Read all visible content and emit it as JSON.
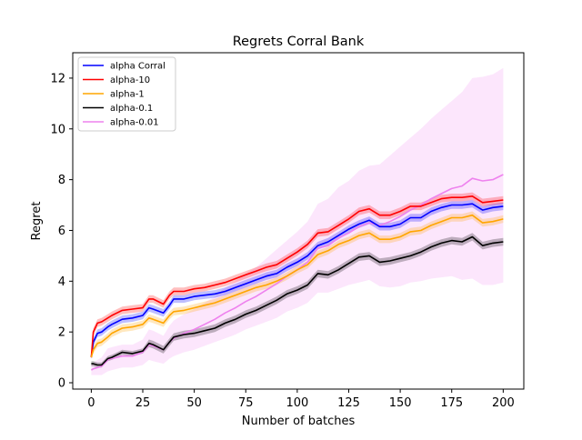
{
  "chart_data": {
    "type": "line",
    "title": "Regrets Corral Bank",
    "xlabel": "Number of batches",
    "ylabel": "Regret",
    "xlim": [
      -9,
      210
    ],
    "ylim": [
      -0.25,
      13
    ],
    "xticks": [
      0,
      25,
      50,
      75,
      100,
      125,
      150,
      175,
      200
    ],
    "yticks": [
      0,
      2,
      4,
      6,
      8,
      10,
      12
    ],
    "grid": false,
    "legend_position": "top-left",
    "series": [
      {
        "name": "alpha Corral",
        "color": "#0000ff",
        "x": [
          0,
          1,
          3,
          5,
          8,
          10,
          15,
          20,
          25,
          28,
          30,
          35,
          38,
          40,
          45,
          50,
          55,
          60,
          65,
          70,
          75,
          80,
          85,
          90,
          95,
          100,
          105,
          110,
          115,
          120,
          125,
          130,
          135,
          140,
          145,
          150,
          155,
          160,
          165,
          170,
          175,
          180,
          185,
          190,
          195,
          200
        ],
        "y": [
          1.0,
          1.6,
          1.95,
          2.0,
          2.2,
          2.3,
          2.5,
          2.55,
          2.65,
          2.95,
          2.9,
          2.75,
          3.05,
          3.3,
          3.3,
          3.4,
          3.45,
          3.5,
          3.6,
          3.75,
          3.9,
          4.05,
          4.2,
          4.3,
          4.55,
          4.75,
          5.0,
          5.4,
          5.55,
          5.8,
          6.05,
          6.25,
          6.4,
          6.15,
          6.15,
          6.25,
          6.5,
          6.5,
          6.75,
          6.9,
          7.0,
          7.0,
          7.05,
          6.8,
          6.9,
          6.95
        ],
        "lower": [
          0.95,
          1.45,
          1.8,
          1.85,
          2.05,
          2.15,
          2.35,
          2.4,
          2.5,
          2.8,
          2.75,
          2.6,
          2.9,
          3.15,
          3.15,
          3.25,
          3.3,
          3.35,
          3.45,
          3.6,
          3.75,
          3.9,
          4.05,
          4.15,
          4.4,
          4.6,
          4.85,
          5.25,
          5.4,
          5.65,
          5.9,
          6.1,
          6.25,
          6.0,
          6.0,
          6.1,
          6.35,
          6.35,
          6.6,
          6.75,
          6.85,
          6.85,
          6.9,
          6.65,
          6.75,
          6.8
        ],
        "upper": [
          1.05,
          1.75,
          2.1,
          2.15,
          2.35,
          2.45,
          2.65,
          2.7,
          2.8,
          3.1,
          3.05,
          2.9,
          3.2,
          3.45,
          3.45,
          3.55,
          3.6,
          3.65,
          3.75,
          3.9,
          4.05,
          4.2,
          4.35,
          4.45,
          4.7,
          4.9,
          5.15,
          5.55,
          5.7,
          5.95,
          6.2,
          6.4,
          6.55,
          6.3,
          6.3,
          6.4,
          6.65,
          6.65,
          6.9,
          7.05,
          7.15,
          7.15,
          7.2,
          6.95,
          7.05,
          7.1
        ]
      },
      {
        "name": "alpha-10",
        "color": "#ff0000",
        "x": [
          0,
          1,
          3,
          5,
          8,
          10,
          15,
          20,
          25,
          28,
          30,
          35,
          38,
          40,
          45,
          50,
          55,
          60,
          65,
          70,
          75,
          80,
          85,
          90,
          95,
          100,
          105,
          110,
          115,
          120,
          125,
          130,
          135,
          140,
          145,
          150,
          155,
          160,
          165,
          170,
          175,
          180,
          185,
          190,
          195,
          200
        ],
        "y": [
          1.0,
          2.0,
          2.35,
          2.4,
          2.55,
          2.65,
          2.85,
          2.9,
          2.95,
          3.3,
          3.3,
          3.1,
          3.45,
          3.6,
          3.6,
          3.7,
          3.75,
          3.85,
          3.95,
          4.1,
          4.25,
          4.4,
          4.55,
          4.65,
          4.9,
          5.15,
          5.45,
          5.9,
          5.95,
          6.2,
          6.45,
          6.75,
          6.85,
          6.6,
          6.6,
          6.75,
          6.95,
          6.95,
          7.1,
          7.25,
          7.3,
          7.3,
          7.35,
          7.1,
          7.15,
          7.2
        ],
        "lower": [
          0.95,
          1.85,
          2.2,
          2.25,
          2.4,
          2.5,
          2.7,
          2.75,
          2.8,
          3.15,
          3.15,
          2.95,
          3.3,
          3.45,
          3.45,
          3.55,
          3.6,
          3.7,
          3.8,
          3.95,
          4.1,
          4.25,
          4.4,
          4.5,
          4.75,
          5.0,
          5.3,
          5.75,
          5.8,
          6.05,
          6.3,
          6.6,
          6.7,
          6.45,
          6.45,
          6.6,
          6.8,
          6.8,
          6.95,
          7.1,
          7.15,
          7.15,
          7.2,
          6.95,
          7.0,
          7.05
        ],
        "upper": [
          1.05,
          2.15,
          2.5,
          2.55,
          2.7,
          2.8,
          3.0,
          3.05,
          3.1,
          3.45,
          3.45,
          3.25,
          3.6,
          3.75,
          3.75,
          3.85,
          3.9,
          4.0,
          4.1,
          4.25,
          4.4,
          4.55,
          4.7,
          4.8,
          5.05,
          5.3,
          5.6,
          6.05,
          6.1,
          6.35,
          6.6,
          6.9,
          7.0,
          6.75,
          6.75,
          6.9,
          7.1,
          7.1,
          7.25,
          7.4,
          7.45,
          7.45,
          7.5,
          7.25,
          7.3,
          7.35
        ]
      },
      {
        "name": "alpha-1",
        "color": "#ffa500",
        "x": [
          0,
          1,
          3,
          5,
          8,
          10,
          15,
          20,
          25,
          28,
          30,
          35,
          38,
          40,
          45,
          50,
          55,
          60,
          65,
          70,
          75,
          80,
          85,
          90,
          95,
          100,
          105,
          110,
          115,
          120,
          125,
          130,
          135,
          140,
          145,
          150,
          155,
          160,
          165,
          170,
          175,
          180,
          185,
          190,
          195,
          200
        ],
        "y": [
          1.0,
          1.3,
          1.55,
          1.6,
          1.8,
          1.95,
          2.15,
          2.2,
          2.3,
          2.55,
          2.5,
          2.35,
          2.65,
          2.8,
          2.85,
          2.95,
          3.05,
          3.15,
          3.3,
          3.45,
          3.6,
          3.75,
          3.85,
          4.0,
          4.2,
          4.45,
          4.65,
          5.05,
          5.2,
          5.45,
          5.6,
          5.8,
          5.9,
          5.65,
          5.65,
          5.75,
          5.95,
          6.0,
          6.2,
          6.35,
          6.5,
          6.5,
          6.6,
          6.3,
          6.35,
          6.45
        ],
        "lower": [
          0.95,
          1.15,
          1.4,
          1.45,
          1.65,
          1.8,
          2.0,
          2.05,
          2.15,
          2.4,
          2.35,
          2.2,
          2.5,
          2.65,
          2.7,
          2.8,
          2.9,
          3.0,
          3.15,
          3.3,
          3.45,
          3.6,
          3.7,
          3.85,
          4.05,
          4.3,
          4.5,
          4.9,
          5.05,
          5.3,
          5.45,
          5.65,
          5.75,
          5.5,
          5.5,
          5.6,
          5.8,
          5.85,
          6.05,
          6.2,
          6.35,
          6.35,
          6.45,
          6.15,
          6.2,
          6.3
        ],
        "upper": [
          1.05,
          1.45,
          1.7,
          1.75,
          1.95,
          2.1,
          2.3,
          2.35,
          2.45,
          2.7,
          2.65,
          2.5,
          2.8,
          2.95,
          3.0,
          3.1,
          3.2,
          3.3,
          3.45,
          3.6,
          3.75,
          3.9,
          4.0,
          4.15,
          4.35,
          4.6,
          4.8,
          5.2,
          5.35,
          5.6,
          5.75,
          5.95,
          6.05,
          5.8,
          5.8,
          5.9,
          6.1,
          6.15,
          6.35,
          6.5,
          6.65,
          6.65,
          6.75,
          6.45,
          6.5,
          6.6
        ]
      },
      {
        "name": "alpha-0.1",
        "color": "#000000",
        "x": [
          0,
          1,
          3,
          5,
          8,
          10,
          15,
          20,
          25,
          28,
          30,
          35,
          38,
          40,
          45,
          50,
          55,
          60,
          65,
          70,
          75,
          80,
          85,
          90,
          95,
          100,
          105,
          110,
          115,
          120,
          125,
          130,
          135,
          140,
          145,
          150,
          155,
          160,
          165,
          170,
          175,
          180,
          185,
          190,
          195,
          200
        ],
        "y": [
          0.75,
          0.75,
          0.7,
          0.7,
          0.95,
          1.0,
          1.2,
          1.15,
          1.25,
          1.55,
          1.5,
          1.3,
          1.6,
          1.8,
          1.9,
          1.95,
          2.05,
          2.15,
          2.35,
          2.5,
          2.7,
          2.85,
          3.05,
          3.25,
          3.5,
          3.65,
          3.85,
          4.3,
          4.25,
          4.45,
          4.7,
          4.95,
          5.0,
          4.75,
          4.8,
          4.9,
          5.0,
          5.15,
          5.35,
          5.5,
          5.6,
          5.55,
          5.75,
          5.4,
          5.5,
          5.55
        ],
        "lower": [
          0.65,
          0.65,
          0.6,
          0.6,
          0.85,
          0.9,
          1.1,
          1.05,
          1.15,
          1.4,
          1.35,
          1.15,
          1.45,
          1.65,
          1.75,
          1.8,
          1.9,
          2.0,
          2.2,
          2.35,
          2.55,
          2.7,
          2.9,
          3.1,
          3.35,
          3.5,
          3.7,
          4.15,
          4.1,
          4.3,
          4.55,
          4.8,
          4.85,
          4.6,
          4.65,
          4.75,
          4.85,
          5.0,
          5.2,
          5.35,
          5.45,
          5.4,
          5.6,
          5.25,
          5.35,
          5.4
        ],
        "upper": [
          0.85,
          0.85,
          0.8,
          0.8,
          1.05,
          1.1,
          1.3,
          1.25,
          1.35,
          1.7,
          1.65,
          1.45,
          1.75,
          1.95,
          2.05,
          2.1,
          2.2,
          2.3,
          2.5,
          2.65,
          2.85,
          3.0,
          3.2,
          3.4,
          3.65,
          3.8,
          4.0,
          4.45,
          4.4,
          4.6,
          4.85,
          5.1,
          5.15,
          4.9,
          4.95,
          5.05,
          5.15,
          5.3,
          5.5,
          5.65,
          5.75,
          5.7,
          5.9,
          5.55,
          5.65,
          5.7
        ]
      },
      {
        "name": "alpha-0.01",
        "color": "#ee82ee",
        "x": [
          0,
          1,
          3,
          5,
          8,
          10,
          15,
          20,
          25,
          28,
          30,
          35,
          38,
          40,
          45,
          50,
          55,
          60,
          65,
          70,
          75,
          80,
          85,
          90,
          95,
          100,
          105,
          110,
          115,
          120,
          125,
          130,
          135,
          140,
          145,
          150,
          155,
          160,
          165,
          170,
          175,
          180,
          185,
          190,
          195,
          200
        ],
        "y": [
          0.5,
          0.55,
          0.6,
          0.65,
          0.9,
          0.95,
          1.05,
          1.05,
          1.2,
          1.5,
          1.45,
          1.3,
          1.6,
          1.75,
          1.95,
          2.1,
          2.3,
          2.5,
          2.75,
          2.95,
          3.2,
          3.4,
          3.65,
          3.9,
          4.2,
          4.45,
          4.75,
          5.3,
          5.4,
          5.7,
          5.9,
          6.15,
          6.3,
          6.2,
          6.35,
          6.55,
          6.8,
          7.0,
          7.25,
          7.45,
          7.65,
          7.75,
          8.05,
          7.95,
          8.0,
          8.2
        ],
        "lower": [
          0.3,
          0.3,
          0.3,
          0.3,
          0.45,
          0.5,
          0.6,
          0.6,
          0.7,
          0.9,
          0.85,
          0.75,
          0.95,
          1.05,
          1.2,
          1.3,
          1.45,
          1.6,
          1.75,
          1.9,
          2.1,
          2.25,
          2.4,
          2.55,
          2.8,
          2.95,
          3.15,
          3.55,
          3.55,
          3.7,
          3.85,
          3.95,
          4.05,
          3.8,
          3.75,
          3.8,
          3.95,
          4.0,
          4.1,
          4.15,
          4.2,
          4.05,
          4.1,
          3.85,
          3.85,
          3.95
        ],
        "upper": [
          0.7,
          0.8,
          0.9,
          1.0,
          1.35,
          1.4,
          1.5,
          1.5,
          1.7,
          2.1,
          2.05,
          1.85,
          2.25,
          2.45,
          2.7,
          2.9,
          3.15,
          3.4,
          3.75,
          4.0,
          4.3,
          4.55,
          4.9,
          5.25,
          5.6,
          5.95,
          6.35,
          7.05,
          7.25,
          7.7,
          7.95,
          8.35,
          8.55,
          8.6,
          8.95,
          9.3,
          9.65,
          10.0,
          10.4,
          10.75,
          11.1,
          11.45,
          12.0,
          12.05,
          12.15,
          12.4
        ]
      }
    ]
  }
}
